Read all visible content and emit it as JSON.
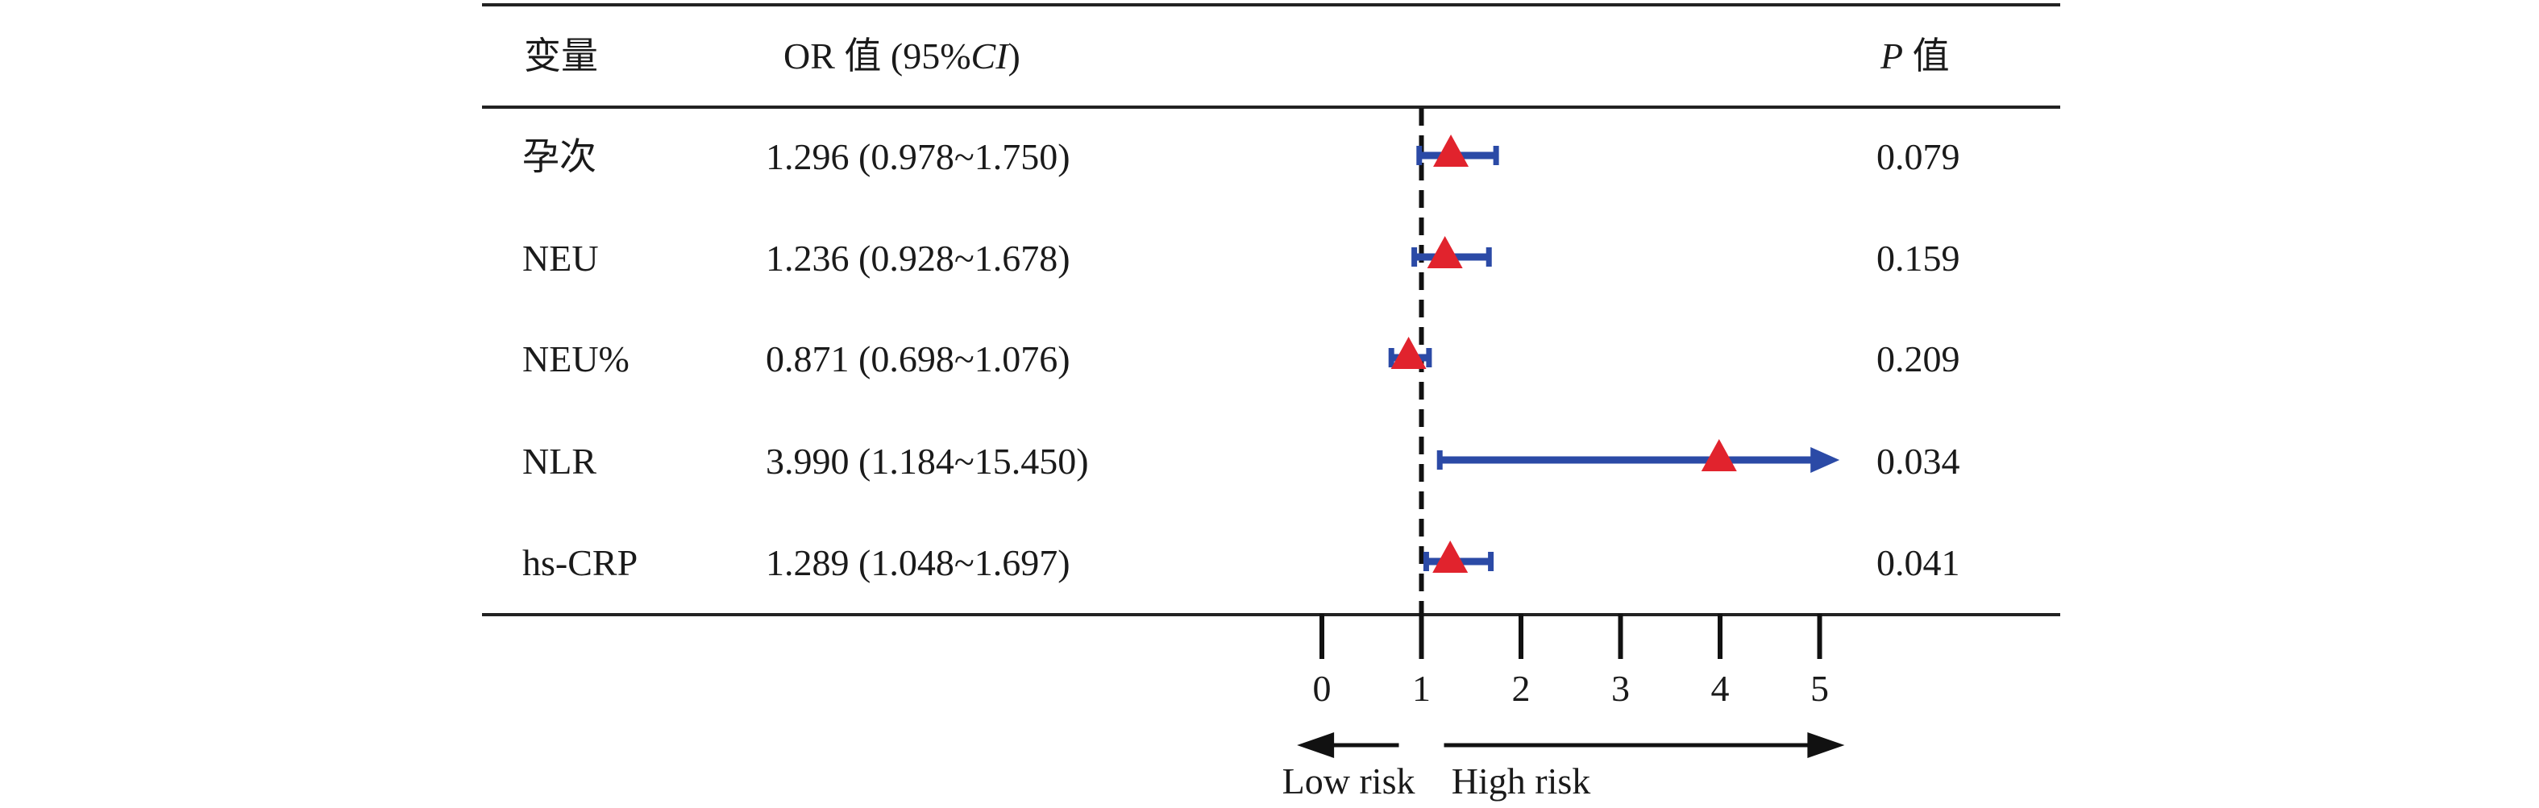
{
  "chart_data": {
    "type": "forest",
    "headers": {
      "variable": "变量",
      "or": "OR 值 (95%",
      "or_ci": "CI",
      "or_close": ")",
      "p": "P",
      "p_suffix": " 值"
    },
    "rows": [
      {
        "variable": "孕次",
        "or_text": "1.296 (0.978~1.750)",
        "or": 1.296,
        "lower": 0.978,
        "upper": 1.75,
        "p": "0.079"
      },
      {
        "variable": "NEU",
        "or_text": "1.236 (0.928~1.678)",
        "or": 1.236,
        "lower": 0.928,
        "upper": 1.678,
        "p": "0.159"
      },
      {
        "variable": "NEU%",
        "or_text": "0.871 (0.698~1.076)",
        "or": 0.871,
        "lower": 0.698,
        "upper": 1.076,
        "p": "0.209"
      },
      {
        "variable": "NLR",
        "or_text": "3.990 (1.184~15.450)",
        "or": 3.99,
        "lower": 1.184,
        "upper": 15.45,
        "p": "0.034"
      },
      {
        "variable": "hs-CRP",
        "or_text": "1.289 (1.048~1.697)",
        "or": 1.289,
        "lower": 1.048,
        "upper": 1.697,
        "p": "0.041"
      }
    ],
    "xaxis": {
      "ticks": [
        0,
        1,
        2,
        3,
        4,
        5
      ],
      "range": [
        0,
        5
      ],
      "reference_line": 1
    },
    "risk_labels": {
      "low": "Low risk",
      "high": "High risk"
    },
    "colors": {
      "ci": "#2b4aa6",
      "marker": "#e1232d",
      "axis": "#111111"
    }
  }
}
